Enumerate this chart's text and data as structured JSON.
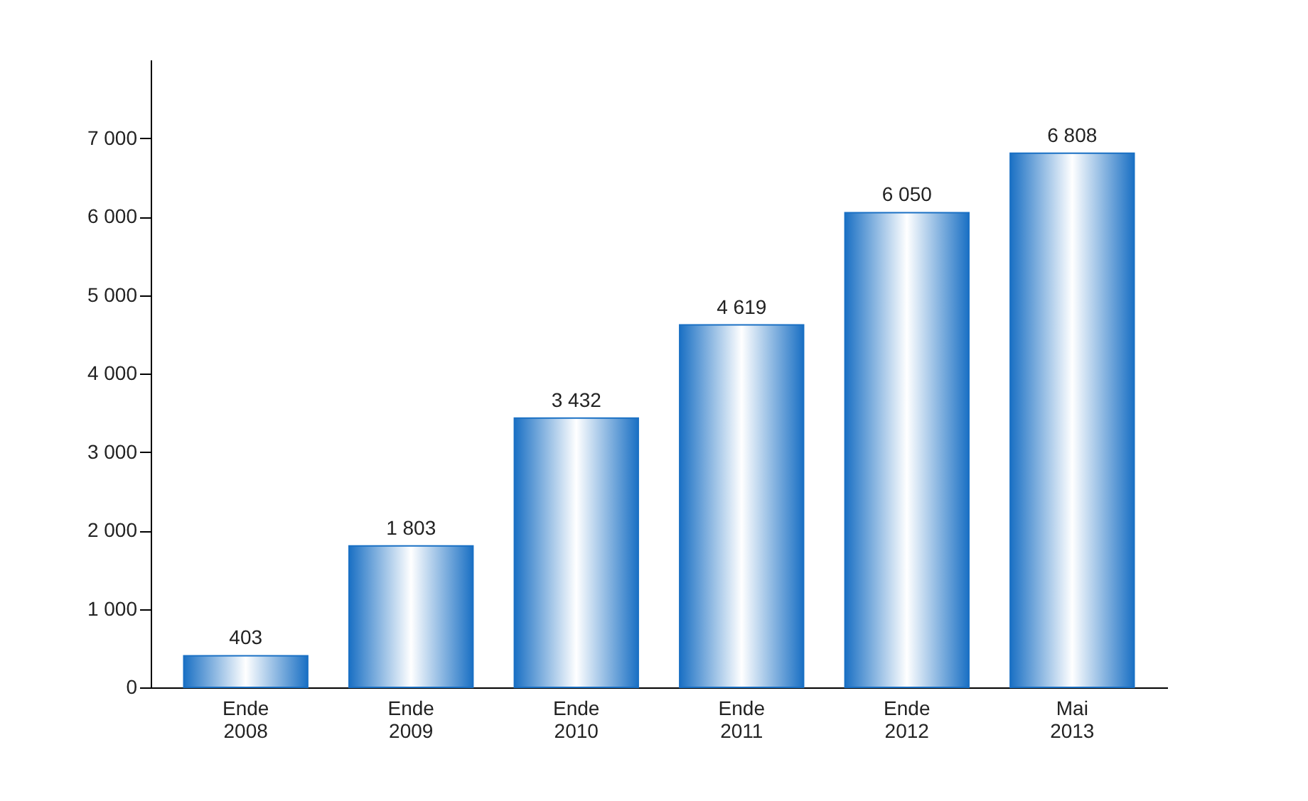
{
  "chart_data": {
    "type": "bar",
    "categories": [
      "Ende\n2008",
      "Ende\n2009",
      "Ende\n2010",
      "Ende\n2011",
      "Ende\n2012",
      "Mai\n2013"
    ],
    "values": [
      403,
      1803,
      3432,
      4619,
      6050,
      6808
    ],
    "value_labels": [
      "403",
      "1 803",
      "3 432",
      "4 619",
      "6 050",
      "6 808"
    ],
    "color": "#1a70c4",
    "ylim": [
      0,
      8000
    ],
    "yticks": [
      {
        "value": 0,
        "label": "0"
      },
      {
        "value": 1000,
        "label": "1 000"
      },
      {
        "value": 2000,
        "label": "2 000"
      },
      {
        "value": 3000,
        "label": "3 000"
      },
      {
        "value": 4000,
        "label": "4 000"
      },
      {
        "value": 5000,
        "label": "5 000"
      },
      {
        "value": 6000,
        "label": "6 000"
      },
      {
        "value": 7000,
        "label": "7 000"
      }
    ],
    "grid": false
  }
}
